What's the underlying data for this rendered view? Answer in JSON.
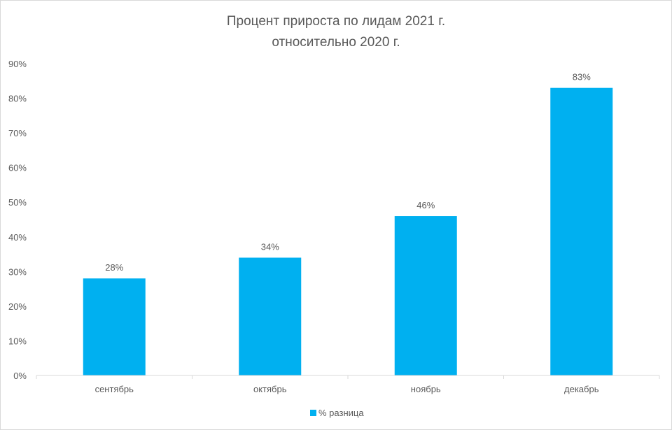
{
  "chart_data": {
    "type": "bar",
    "title": [
      "Процент прироста по лидам 2021 г.",
      "относительно 2020 г."
    ],
    "categories": [
      "сентябрь",
      "октябрь",
      "ноябрь",
      "декабрь"
    ],
    "series": [
      {
        "name": "% разница",
        "values": [
          28,
          34,
          46,
          83
        ],
        "labels": [
          "28%",
          "34%",
          "46%",
          "83%"
        ],
        "color": "#00B0F0"
      }
    ],
    "ylim": [
      0,
      90
    ],
    "yticks": [
      0,
      10,
      20,
      30,
      40,
      50,
      60,
      70,
      80,
      90
    ],
    "ytick_labels": [
      "0%",
      "10%",
      "20%",
      "30%",
      "40%",
      "50%",
      "60%",
      "70%",
      "80%",
      "90%"
    ],
    "xlabel": "",
    "ylabel": "",
    "grid": false,
    "legend": "bottom"
  }
}
